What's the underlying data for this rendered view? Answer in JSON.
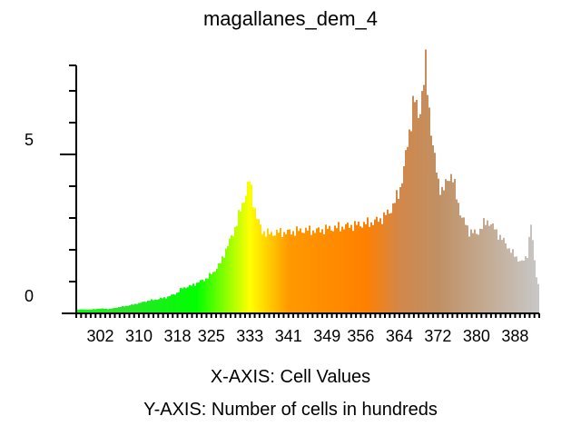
{
  "chart_data": {
    "type": "bar",
    "title": "magallanes_dem_4",
    "xlabel": "X-AXIS: Cell Values",
    "ylabel": "Y-AXIS: Number of cells in hundreds",
    "x_ticks": [
      302,
      310,
      318,
      325,
      333,
      341,
      349,
      356,
      364,
      372,
      380,
      388
    ],
    "y_ticks": [
      0,
      5
    ],
    "xlim": [
      297,
      393
    ],
    "ylim": [
      0,
      7.8
    ],
    "anchors": [
      [
        297.0,
        0.12
      ],
      [
        300.0,
        0.12
      ],
      [
        302.0,
        0.15
      ],
      [
        304.0,
        0.14
      ],
      [
        306.0,
        0.2
      ],
      [
        308.0,
        0.25
      ],
      [
        310.0,
        0.32
      ],
      [
        312.0,
        0.4
      ],
      [
        314.0,
        0.45
      ],
      [
        316.0,
        0.52
      ],
      [
        318.0,
        0.65
      ],
      [
        319.0,
        0.8
      ],
      [
        320.5,
        0.85
      ],
      [
        322.0,
        0.95
      ],
      [
        324.0,
        1.1
      ],
      [
        325.5,
        1.3
      ],
      [
        327.0,
        1.6
      ],
      [
        328.0,
        2.0
      ],
      [
        329.5,
        2.5
      ],
      [
        331.0,
        3.2
      ],
      [
        332.5,
        3.95
      ],
      [
        333.0,
        4.2
      ],
      [
        333.5,
        3.7
      ],
      [
        334.5,
        3.0
      ],
      [
        335.5,
        2.6
      ],
      [
        337.0,
        2.5
      ],
      [
        339.0,
        2.55
      ],
      [
        341.0,
        2.55
      ],
      [
        344.0,
        2.62
      ],
      [
        347.0,
        2.6
      ],
      [
        349.0,
        2.66
      ],
      [
        352.0,
        2.72
      ],
      [
        355.0,
        2.78
      ],
      [
        358.0,
        2.85
      ],
      [
        360.0,
        2.95
      ],
      [
        362.0,
        3.2
      ],
      [
        364.0,
        3.8
      ],
      [
        365.0,
        4.6
      ],
      [
        366.0,
        5.6
      ],
      [
        367.0,
        6.8
      ],
      [
        368.0,
        6.2
      ],
      [
        369.0,
        7.2
      ],
      [
        369.5,
        7.8
      ],
      [
        370.0,
        6.8
      ],
      [
        371.0,
        5.2
      ],
      [
        372.0,
        4.2
      ],
      [
        373.0,
        3.8
      ],
      [
        374.5,
        4.4
      ],
      [
        375.0,
        4.3
      ],
      [
        376.0,
        3.6
      ],
      [
        377.0,
        3.0
      ],
      [
        378.5,
        2.6
      ],
      [
        380.0,
        2.5
      ],
      [
        381.5,
        2.8
      ],
      [
        382.5,
        2.92
      ],
      [
        383.5,
        2.7
      ],
      [
        385.0,
        2.4
      ],
      [
        386.5,
        2.1
      ],
      [
        388.0,
        1.8
      ],
      [
        389.5,
        1.6
      ],
      [
        390.5,
        1.8
      ],
      [
        391.3,
        2.85
      ],
      [
        391.8,
        2.0
      ],
      [
        392.4,
        1.2
      ],
      [
        393.0,
        0.8
      ]
    ],
    "color_stops": [
      [
        297,
        "#00ff00"
      ],
      [
        306,
        "#2ee32e"
      ],
      [
        322,
        "#00ff00"
      ],
      [
        333,
        "#ffff00"
      ],
      [
        341,
        "#ff9900"
      ],
      [
        357,
        "#ff8000"
      ],
      [
        364,
        "#d2874a"
      ],
      [
        372,
        "#c09063"
      ],
      [
        393,
        "#c7c7c7"
      ]
    ]
  }
}
